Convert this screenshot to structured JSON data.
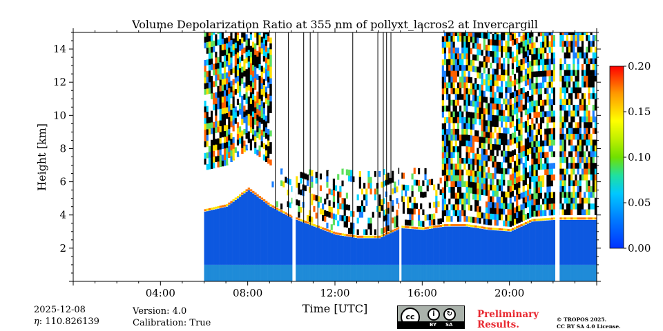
{
  "chart_data": {
    "type": "heatmap",
    "title": "Volume Depolarization Ratio at 355 nm of pollyxt_lacros2 at Invercargill",
    "xlabel": "Time [UTC]",
    "ylabel": "Height [km]",
    "xlim_hours": [
      0,
      24
    ],
    "ylim_km": [
      0,
      15
    ],
    "x_ticks": [
      {
        "hour": 4,
        "label": "04:00"
      },
      {
        "hour": 8,
        "label": "08:00"
      },
      {
        "hour": 12,
        "label": "12:00"
      },
      {
        "hour": 16,
        "label": "16:00"
      },
      {
        "hour": 20,
        "label": "20:00"
      }
    ],
    "y_ticks": [
      {
        "value": 2,
        "label": "2"
      },
      {
        "value": 4,
        "label": "4"
      },
      {
        "value": 6,
        "label": "6"
      },
      {
        "value": 8,
        "label": "8"
      },
      {
        "value": 10,
        "label": "10"
      },
      {
        "value": 12,
        "label": "12"
      },
      {
        "value": 14,
        "label": "14"
      }
    ],
    "colorbar": {
      "min": 0.0,
      "max": 0.2,
      "colormap": "jet",
      "ticks": [
        {
          "value": 0.0,
          "label": "0.00"
        },
        {
          "value": 0.05,
          "label": "0.05"
        },
        {
          "value": 0.1,
          "label": "0.10"
        },
        {
          "value": 0.15,
          "label": "0.15"
        },
        {
          "value": 0.2,
          "label": "0.20"
        }
      ]
    },
    "measurement_start_hour": 6.0,
    "measurement_end_hour": 24.0,
    "data_gaps_hours": [
      [
        10.05,
        10.2
      ],
      [
        14.95,
        15.05
      ],
      [
        22.1,
        22.3
      ]
    ],
    "low_signal_profiles_hours": [
      9.25,
      9.85,
      10.55,
      10.85,
      11.2,
      12.8,
      13.95,
      14.2,
      14.35,
      14.55
    ],
    "layer_top_km": [
      {
        "hour": 6.0,
        "km": 4.2
      },
      {
        "hour": 7.0,
        "km": 4.5
      },
      {
        "hour": 8.0,
        "km": 5.5
      },
      {
        "hour": 9.0,
        "km": 4.5
      },
      {
        "hour": 10.0,
        "km": 3.8
      },
      {
        "hour": 11.0,
        "km": 3.3
      },
      {
        "hour": 12.0,
        "km": 2.8
      },
      {
        "hour": 13.0,
        "km": 2.6
      },
      {
        "hour": 14.0,
        "km": 2.6
      },
      {
        "hour": 15.0,
        "km": 3.2
      },
      {
        "hour": 16.0,
        "km": 3.1
      },
      {
        "hour": 17.0,
        "km": 3.3
      },
      {
        "hour": 18.0,
        "km": 3.3
      },
      {
        "hour": 19.0,
        "km": 3.1
      },
      {
        "hour": 20.0,
        "km": 3.0
      },
      {
        "hour": 21.0,
        "km": 3.6
      },
      {
        "hour": 22.0,
        "km": 3.7
      },
      {
        "hour": 24.0,
        "km": 3.7
      }
    ]
  },
  "footer": {
    "date": "2025-12-08",
    "eta_label": "η",
    "eta_value": "110.826139",
    "version": "Version: 4.0",
    "calibration": "Calibration: True",
    "license_badge_text": [
      "BY",
      "SA"
    ],
    "preliminary_line1": "Preliminary",
    "preliminary_line2": "Results.",
    "copyright_line1": "© TROPOS 2025.",
    "copyright_line2": "CC BY SA 4.0 License."
  },
  "colors": {
    "preliminary": "#e8262e",
    "cc_badge_bg": "#aab2ab"
  }
}
